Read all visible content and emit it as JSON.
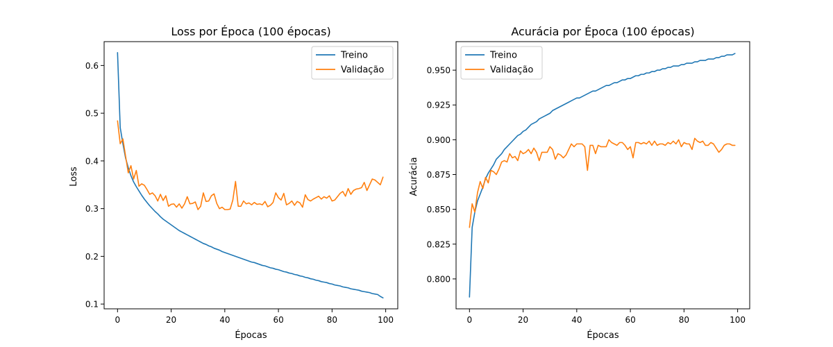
{
  "chart_data": [
    {
      "type": "line",
      "title": "Loss por Época (100 épocas)",
      "xlabel": "Épocas",
      "ylabel": "Loss",
      "xlim": [
        -5,
        104.5
      ],
      "ylim": [
        0.09,
        0.65
      ],
      "xticks": [
        0,
        20,
        40,
        60,
        80,
        100
      ],
      "yticks": [
        0.1,
        0.2,
        0.3,
        0.4,
        0.5,
        0.6
      ],
      "ytick_decimals": 1,
      "grid": false,
      "legend": "top-right",
      "series": [
        {
          "name": "Treino",
          "color": "#1f77b4",
          "values": [
            0.627,
            0.47,
            0.436,
            0.406,
            0.386,
            0.369,
            0.356,
            0.346,
            0.337,
            0.328,
            0.32,
            0.313,
            0.306,
            0.3,
            0.294,
            0.289,
            0.283,
            0.278,
            0.274,
            0.27,
            0.266,
            0.262,
            0.258,
            0.254,
            0.251,
            0.248,
            0.245,
            0.242,
            0.239,
            0.236,
            0.233,
            0.23,
            0.227,
            0.225,
            0.222,
            0.22,
            0.217,
            0.215,
            0.213,
            0.21,
            0.208,
            0.206,
            0.204,
            0.202,
            0.2,
            0.198,
            0.196,
            0.194,
            0.192,
            0.19,
            0.188,
            0.187,
            0.185,
            0.183,
            0.181,
            0.18,
            0.178,
            0.176,
            0.175,
            0.173,
            0.172,
            0.17,
            0.168,
            0.167,
            0.165,
            0.164,
            0.162,
            0.161,
            0.159,
            0.158,
            0.156,
            0.155,
            0.153,
            0.152,
            0.15,
            0.149,
            0.147,
            0.146,
            0.145,
            0.143,
            0.142,
            0.14,
            0.139,
            0.138,
            0.136,
            0.135,
            0.134,
            0.132,
            0.131,
            0.13,
            0.129,
            0.127,
            0.126,
            0.125,
            0.124,
            0.122,
            0.121,
            0.12,
            0.116,
            0.113
          ]
        },
        {
          "name": "Validação",
          "color": "#ff7f0e",
          "values": [
            0.484,
            0.436,
            0.446,
            0.41,
            0.375,
            0.39,
            0.362,
            0.38,
            0.347,
            0.352,
            0.349,
            0.34,
            0.33,
            0.333,
            0.327,
            0.316,
            0.33,
            0.317,
            0.327,
            0.305,
            0.309,
            0.31,
            0.303,
            0.31,
            0.301,
            0.31,
            0.325,
            0.31,
            0.311,
            0.314,
            0.298,
            0.305,
            0.333,
            0.315,
            0.316,
            0.327,
            0.331,
            0.311,
            0.3,
            0.303,
            0.298,
            0.298,
            0.299,
            0.318,
            0.357,
            0.305,
            0.305,
            0.316,
            0.31,
            0.312,
            0.308,
            0.313,
            0.309,
            0.31,
            0.308,
            0.315,
            0.304,
            0.307,
            0.313,
            0.333,
            0.323,
            0.318,
            0.332,
            0.308,
            0.311,
            0.316,
            0.307,
            0.315,
            0.312,
            0.303,
            0.329,
            0.319,
            0.316,
            0.32,
            0.323,
            0.326,
            0.32,
            0.325,
            0.322,
            0.327,
            0.316,
            0.318,
            0.325,
            0.332,
            0.336,
            0.326,
            0.342,
            0.33,
            0.338,
            0.341,
            0.342,
            0.344,
            0.355,
            0.338,
            0.35,
            0.362,
            0.36,
            0.355,
            0.35,
            0.366
          ]
        }
      ]
    },
    {
      "type": "line",
      "title": "Acurácia por Época (100 épocas)",
      "xlabel": "Épocas",
      "ylabel": "Acurácia",
      "xlim": [
        -5,
        104.5
      ],
      "ylim": [
        0.7785,
        0.9705
      ],
      "xticks": [
        0,
        20,
        40,
        60,
        80,
        100
      ],
      "yticks": [
        0.8,
        0.825,
        0.85,
        0.875,
        0.9,
        0.925,
        0.95
      ],
      "ytick_decimals": 3,
      "grid": false,
      "legend": "top-left",
      "series": [
        {
          "name": "Treino",
          "color": "#1f77b4",
          "values": [
            0.787,
            0.837,
            0.848,
            0.856,
            0.861,
            0.866,
            0.872,
            0.876,
            0.879,
            0.882,
            0.886,
            0.888,
            0.89,
            0.893,
            0.895,
            0.897,
            0.899,
            0.901,
            0.903,
            0.904,
            0.906,
            0.907,
            0.909,
            0.911,
            0.912,
            0.913,
            0.915,
            0.916,
            0.917,
            0.918,
            0.919,
            0.921,
            0.922,
            0.923,
            0.924,
            0.925,
            0.926,
            0.927,
            0.928,
            0.929,
            0.93,
            0.93,
            0.931,
            0.932,
            0.933,
            0.934,
            0.935,
            0.935,
            0.936,
            0.937,
            0.938,
            0.939,
            0.939,
            0.94,
            0.941,
            0.941,
            0.942,
            0.943,
            0.943,
            0.944,
            0.944,
            0.945,
            0.946,
            0.946,
            0.947,
            0.947,
            0.948,
            0.948,
            0.949,
            0.949,
            0.95,
            0.95,
            0.951,
            0.951,
            0.952,
            0.952,
            0.953,
            0.953,
            0.953,
            0.954,
            0.954,
            0.955,
            0.955,
            0.955,
            0.956,
            0.956,
            0.957,
            0.957,
            0.957,
            0.958,
            0.958,
            0.958,
            0.959,
            0.959,
            0.96,
            0.96,
            0.961,
            0.961,
            0.961,
            0.962
          ]
        },
        {
          "name": "Validação",
          "color": "#ff7f0e",
          "values": [
            0.837,
            0.854,
            0.848,
            0.862,
            0.87,
            0.865,
            0.873,
            0.869,
            0.878,
            0.877,
            0.875,
            0.879,
            0.884,
            0.885,
            0.884,
            0.89,
            0.887,
            0.888,
            0.885,
            0.892,
            0.89,
            0.891,
            0.893,
            0.89,
            0.894,
            0.891,
            0.885,
            0.891,
            0.891,
            0.891,
            0.895,
            0.893,
            0.886,
            0.89,
            0.889,
            0.887,
            0.889,
            0.893,
            0.897,
            0.895,
            0.897,
            0.897,
            0.897,
            0.895,
            0.878,
            0.896,
            0.896,
            0.89,
            0.896,
            0.895,
            0.895,
            0.895,
            0.9,
            0.898,
            0.897,
            0.896,
            0.898,
            0.898,
            0.896,
            0.893,
            0.895,
            0.887,
            0.898,
            0.898,
            0.897,
            0.898,
            0.897,
            0.899,
            0.896,
            0.899,
            0.896,
            0.897,
            0.897,
            0.896,
            0.898,
            0.897,
            0.899,
            0.897,
            0.9,
            0.895,
            0.898,
            0.897,
            0.897,
            0.893,
            0.901,
            0.899,
            0.898,
            0.899,
            0.896,
            0.896,
            0.898,
            0.897,
            0.894,
            0.891,
            0.893,
            0.896,
            0.897,
            0.897,
            0.896,
            0.896
          ]
        }
      ]
    }
  ]
}
